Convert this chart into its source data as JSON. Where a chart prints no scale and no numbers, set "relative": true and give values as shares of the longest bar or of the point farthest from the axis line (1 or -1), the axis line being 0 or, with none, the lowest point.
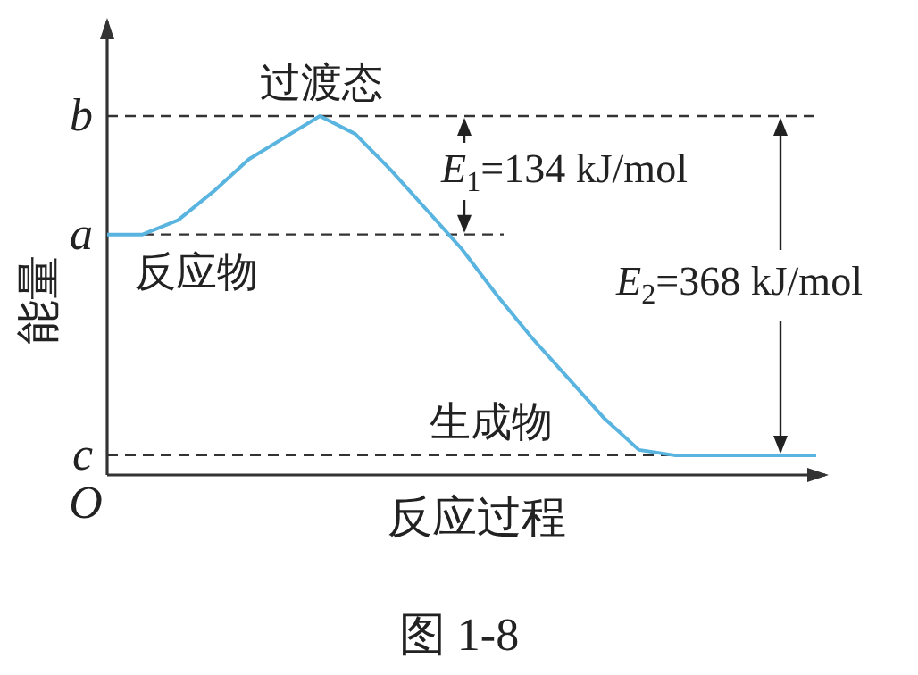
{
  "chart_data": {
    "type": "line",
    "relative": true,
    "title": "图 1-8",
    "xlabel": "反应过程",
    "ylabel": "能量",
    "categories": [
      null,
      null,
      null,
      null,
      null,
      null,
      null,
      null,
      null,
      null,
      null,
      null,
      null,
      null,
      null,
      null,
      null,
      null,
      null,
      null,
      null
    ],
    "series": [
      {
        "color": "#5ab4e0",
        "values": [
          0.67,
          0.67,
          0.71,
          0.79,
          0.88,
          0.94,
          1,
          0.95,
          0.85,
          0.74,
          0.63,
          0.5,
          0.38,
          0.27,
          0.16,
          0.07,
          0.055,
          0.055,
          0.055,
          0.055,
          0.055
        ]
      }
    ],
    "ref_lines": [
      {
        "axis": "y",
        "value": 1,
        "label": "*b*",
        "line_style": "dashed"
      },
      {
        "axis": "y",
        "value": 0.67,
        "label": "*a*",
        "line_style": "dashed"
      },
      {
        "axis": "y",
        "value": 0.055,
        "label": "*c*",
        "line_style": "dashed"
      }
    ],
    "annotations": [
      "O",
      "过渡态",
      "反应物",
      "生成物",
      "*E*$_{1}$=134 kJ/mol",
      "*E*$_{2}$=368 kJ/mol"
    ],
    "marker": "none",
    "line_style": "solid"
  }
}
